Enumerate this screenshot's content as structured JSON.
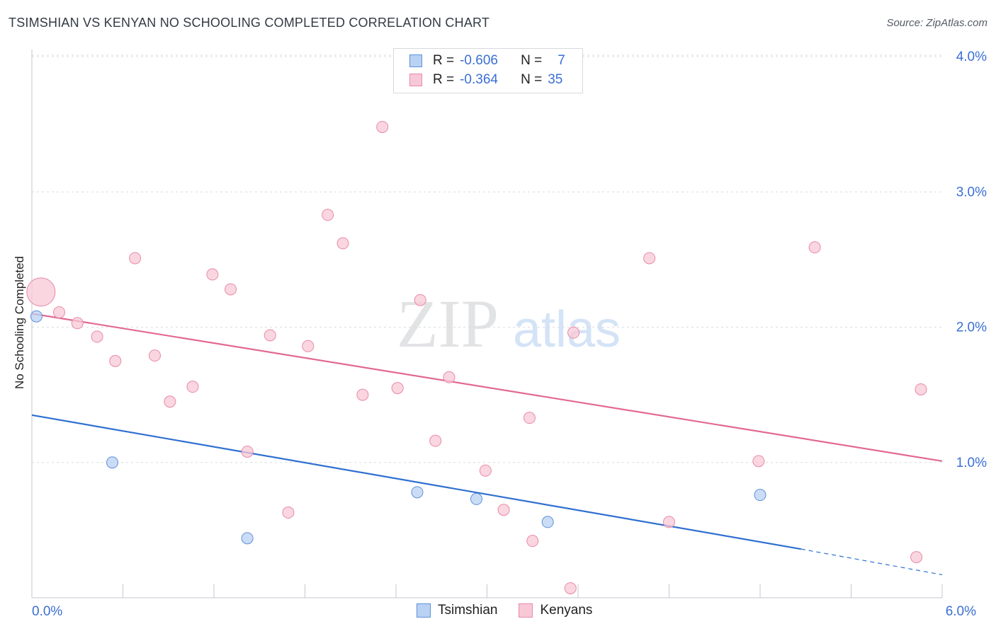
{
  "title": "TSIMSHIAN VS KENYAN NO SCHOOLING COMPLETED CORRELATION CHART",
  "source": "Source: ZipAtlas.com",
  "watermark": {
    "zip": "ZIP",
    "atlas": "atlas"
  },
  "legend": {
    "rows": [
      {
        "r_label": "R =",
        "r_value": "-0.606",
        "n_label": "N =",
        "n_value": "7",
        "fill": "#b9d2f3",
        "stroke": "#5e8fd9"
      },
      {
        "r_label": "R =",
        "r_value": "-0.364",
        "n_label": "N =",
        "n_value": "35",
        "fill": "#f8c8d6",
        "stroke": "#e88aa8"
      }
    ]
  },
  "bottom_legend": [
    {
      "label": "Tsimshian",
      "fill": "#b9d2f3",
      "stroke": "#5e8fd9"
    },
    {
      "label": "Kenyans",
      "fill": "#f8c8d6",
      "stroke": "#e88aa8"
    }
  ],
  "chart_data": {
    "type": "scatter",
    "title": "TSIMSHIAN VS KENYAN NO SCHOOLING COMPLETED CORRELATION CHART",
    "xlabel": "",
    "ylabel": "No Schooling Completed",
    "xlim": [
      0,
      6
    ],
    "ylim": [
      0,
      4.1
    ],
    "x_tick_labels": [
      {
        "value": 0,
        "label": "0.0%"
      },
      {
        "value": 6,
        "label": "6.0%"
      }
    ],
    "y_tick_labels": [
      {
        "value": 1,
        "label": "1.0%"
      },
      {
        "value": 2,
        "label": "2.0%"
      },
      {
        "value": 3,
        "label": "3.0%"
      },
      {
        "value": 4,
        "label": "4.0%"
      }
    ],
    "series": [
      {
        "name": "Tsimshian",
        "color": "#5e8fd9",
        "fill": "#b9d2f3",
        "line_color": "#2f6fd0",
        "points": [
          {
            "x": 0.03,
            "y": 2.08
          },
          {
            "x": 0.53,
            "y": 1.0
          },
          {
            "x": 1.42,
            "y": 0.44
          },
          {
            "x": 2.54,
            "y": 0.78
          },
          {
            "x": 2.93,
            "y": 0.73
          },
          {
            "x": 3.4,
            "y": 0.56
          },
          {
            "x": 4.8,
            "y": 0.76
          }
        ],
        "trend": {
          "x1": 0,
          "y1": 1.35,
          "x2": 5.07,
          "y2": 0.36,
          "dashed_to_x": 6.0,
          "dashed_to_y": 0.17
        }
      },
      {
        "name": "Kenyans",
        "color": "#e88aa8",
        "fill": "#f8c8d6",
        "line_color": "#e26893",
        "points": [
          {
            "x": 0.06,
            "y": 2.26,
            "size": "large"
          },
          {
            "x": 0.18,
            "y": 2.11
          },
          {
            "x": 0.3,
            "y": 2.03
          },
          {
            "x": 0.43,
            "y": 1.93
          },
          {
            "x": 0.55,
            "y": 1.75
          },
          {
            "x": 0.68,
            "y": 2.51
          },
          {
            "x": 0.81,
            "y": 1.79
          },
          {
            "x": 0.91,
            "y": 1.45
          },
          {
            "x": 1.06,
            "y": 1.56
          },
          {
            "x": 1.19,
            "y": 2.39
          },
          {
            "x": 1.31,
            "y": 2.28
          },
          {
            "x": 1.42,
            "y": 1.08
          },
          {
            "x": 1.57,
            "y": 1.94
          },
          {
            "x": 1.69,
            "y": 0.63
          },
          {
            "x": 1.82,
            "y": 1.86
          },
          {
            "x": 1.95,
            "y": 2.83
          },
          {
            "x": 2.05,
            "y": 2.62
          },
          {
            "x": 2.18,
            "y": 1.5
          },
          {
            "x": 2.31,
            "y": 3.48
          },
          {
            "x": 2.41,
            "y": 1.55
          },
          {
            "x": 2.56,
            "y": 2.2
          },
          {
            "x": 2.66,
            "y": 1.16
          },
          {
            "x": 2.75,
            "y": 1.63
          },
          {
            "x": 2.99,
            "y": 0.94
          },
          {
            "x": 3.11,
            "y": 0.65
          },
          {
            "x": 3.28,
            "y": 1.33
          },
          {
            "x": 3.3,
            "y": 0.42
          },
          {
            "x": 3.57,
            "y": 1.96
          },
          {
            "x": 3.55,
            "y": 0.07
          },
          {
            "x": 4.07,
            "y": 2.51
          },
          {
            "x": 4.2,
            "y": 0.56
          },
          {
            "x": 4.79,
            "y": 1.01
          },
          {
            "x": 5.16,
            "y": 2.59
          },
          {
            "x": 5.83,
            "y": 0.3
          },
          {
            "x": 5.86,
            "y": 1.54
          }
        ],
        "trend": {
          "x1": 0,
          "y1": 2.1,
          "x2": 6.0,
          "y2": 1.01
        }
      }
    ]
  }
}
